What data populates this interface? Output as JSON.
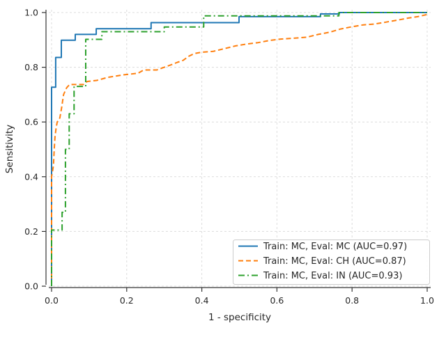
{
  "chart_data": {
    "type": "line",
    "subtype": "roc-curves",
    "title": "",
    "xlabel": "1 - specificity",
    "ylabel": "Sensitivity",
    "xlim": [
      0.0,
      1.0
    ],
    "ylim": [
      0.0,
      1.0
    ],
    "xticks": [
      0.0,
      0.2,
      0.4,
      0.6,
      0.8,
      1.0
    ],
    "yticks": [
      0.0,
      0.2,
      0.4,
      0.6,
      0.8,
      1.0
    ],
    "xtick_labels": [
      "0.0",
      "0.2",
      "0.4",
      "0.6",
      "0.8",
      "1.0"
    ],
    "ytick_labels": [
      "0.0",
      "0.2",
      "0.4",
      "0.6",
      "0.8",
      "1.0"
    ],
    "grid": true,
    "grid_color": "#dcdcdc",
    "spine_color": "#333333",
    "text_color": "#262626",
    "background_color": "#ffffff",
    "legend_position": "lower right",
    "series": [
      {
        "name": "Train: MC, Eval: MC (AUC=0.97)",
        "train": "MC",
        "eval": "MC",
        "auc": 0.97,
        "color": "#1f77b4",
        "style": "solid",
        "points": [
          [
            0,
            0
          ],
          [
            0,
            0.727
          ],
          [
            0.011,
            0.727
          ],
          [
            0.011,
            0.836
          ],
          [
            0.026,
            0.836
          ],
          [
            0.026,
            0.899
          ],
          [
            0.063,
            0.899
          ],
          [
            0.063,
            0.92
          ],
          [
            0.119,
            0.92
          ],
          [
            0.119,
            0.941
          ],
          [
            0.265,
            0.941
          ],
          [
            0.265,
            0.963
          ],
          [
            0.499,
            0.963
          ],
          [
            0.499,
            0.985
          ],
          [
            0.716,
            0.985
          ],
          [
            0.716,
            0.995
          ],
          [
            0.766,
            0.995
          ],
          [
            0.766,
            1.0
          ],
          [
            1.0,
            1.0
          ]
        ]
      },
      {
        "name": "Train: MC, Eval: CH (AUC=0.87)",
        "train": "MC",
        "eval": "CH",
        "auc": 0.87,
        "color": "#ff7f0e",
        "style": "dashed",
        "points": [
          [
            0,
            0
          ],
          [
            0,
            0.4
          ],
          [
            0.005,
            0.44
          ],
          [
            0.007,
            0.5
          ],
          [
            0.009,
            0.545
          ],
          [
            0.012,
            0.578
          ],
          [
            0.015,
            0.6
          ],
          [
            0.022,
            0.615
          ],
          [
            0.027,
            0.655
          ],
          [
            0.032,
            0.7
          ],
          [
            0.04,
            0.725
          ],
          [
            0.048,
            0.737
          ],
          [
            0.085,
            0.737
          ],
          [
            0.095,
            0.748
          ],
          [
            0.12,
            0.752
          ],
          [
            0.15,
            0.763
          ],
          [
            0.19,
            0.772
          ],
          [
            0.23,
            0.778
          ],
          [
            0.245,
            0.79
          ],
          [
            0.28,
            0.79
          ],
          [
            0.3,
            0.8
          ],
          [
            0.32,
            0.81
          ],
          [
            0.335,
            0.818
          ],
          [
            0.35,
            0.825
          ],
          [
            0.365,
            0.84
          ],
          [
            0.38,
            0.85
          ],
          [
            0.4,
            0.855
          ],
          [
            0.43,
            0.858
          ],
          [
            0.46,
            0.868
          ],
          [
            0.49,
            0.878
          ],
          [
            0.52,
            0.885
          ],
          [
            0.55,
            0.89
          ],
          [
            0.58,
            0.898
          ],
          [
            0.61,
            0.903
          ],
          [
            0.645,
            0.906
          ],
          [
            0.68,
            0.91
          ],
          [
            0.71,
            0.92
          ],
          [
            0.74,
            0.928
          ],
          [
            0.77,
            0.94
          ],
          [
            0.8,
            0.948
          ],
          [
            0.83,
            0.955
          ],
          [
            0.86,
            0.958
          ],
          [
            0.89,
            0.965
          ],
          [
            0.92,
            0.972
          ],
          [
            0.95,
            0.98
          ],
          [
            0.975,
            0.985
          ],
          [
            1.0,
            0.993
          ]
        ]
      },
      {
        "name": "Train: MC, Eval: IN (AUC=0.93)",
        "train": "MC",
        "eval": "IN",
        "auc": 0.93,
        "color": "#2ca02c",
        "style": "dashdot",
        "points": [
          [
            0,
            0
          ],
          [
            0,
            0.205
          ],
          [
            0.028,
            0.205
          ],
          [
            0.028,
            0.27
          ],
          [
            0.037,
            0.27
          ],
          [
            0.037,
            0.5
          ],
          [
            0.047,
            0.5
          ],
          [
            0.047,
            0.63
          ],
          [
            0.06,
            0.63
          ],
          [
            0.06,
            0.73
          ],
          [
            0.091,
            0.73
          ],
          [
            0.091,
            0.902
          ],
          [
            0.134,
            0.902
          ],
          [
            0.134,
            0.93
          ],
          [
            0.3,
            0.93
          ],
          [
            0.3,
            0.947
          ],
          [
            0.405,
            0.947
          ],
          [
            0.405,
            0.988
          ],
          [
            0.765,
            0.988
          ],
          [
            0.765,
            1.0
          ],
          [
            1.0,
            1.0
          ]
        ]
      }
    ]
  }
}
